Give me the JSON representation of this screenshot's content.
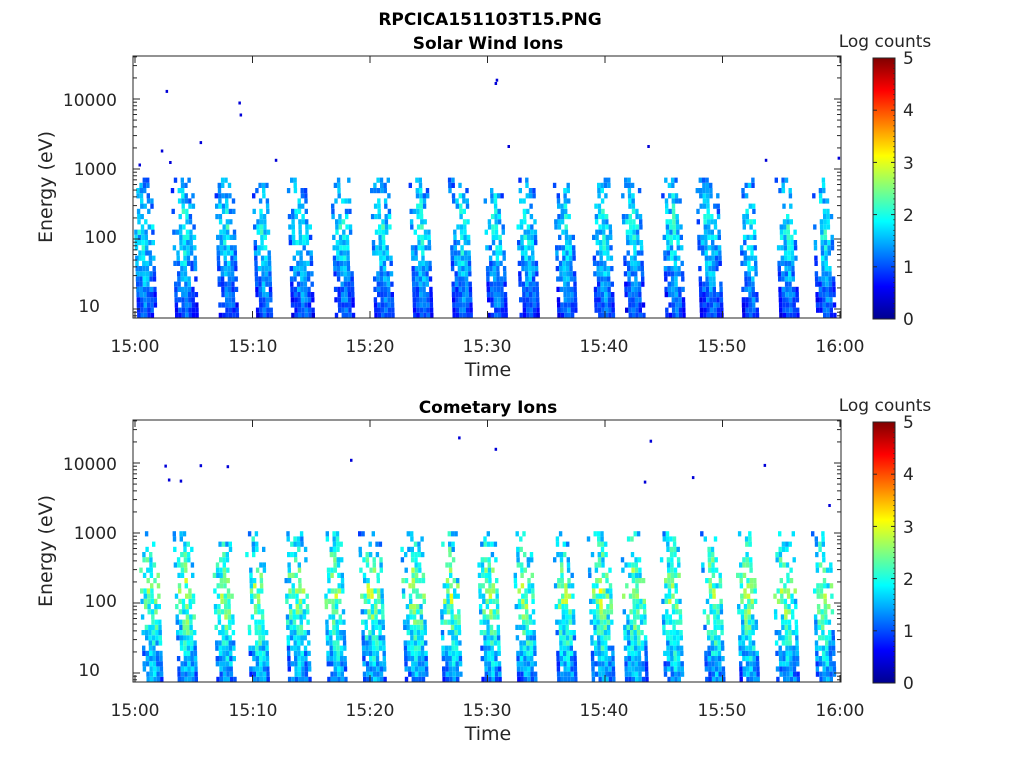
{
  "figure": {
    "title": "RPCICA151103T15.PNG"
  },
  "chart_data": [
    {
      "type": "heatmap",
      "title": "Solar Wind Ions",
      "xlabel": "Time",
      "ylabel": "Energy (eV)",
      "x_tick_labels": [
        "15:00",
        "15:10",
        "15:20",
        "15:30",
        "15:40",
        "15:50",
        "16:00"
      ],
      "y_tick_labels": [
        "10",
        "100",
        "1000",
        "10000"
      ],
      "y_scale": "log",
      "xlim_minutes": [
        0,
        60
      ],
      "ylim_eV": [
        6,
        40000
      ],
      "colorbar": {
        "label": "Log counts",
        "min": 0,
        "max": 5,
        "ticks": [
          "0",
          "1",
          "2",
          "3",
          "4",
          "5"
        ]
      },
      "pulses_minute": [
        0.8,
        4.3,
        7.9,
        11.0,
        14.2,
        17.8,
        21.2,
        24.5,
        27.9,
        30.8,
        33.5,
        36.8,
        40.0,
        42.5,
        46.0,
        49.0,
        52.4,
        55.6,
        58.8
      ],
      "peak_log_counts": 2.1,
      "isolated_points": [
        {
          "minute": 2.6,
          "eV": 13500
        },
        {
          "minute": 8.8,
          "eV": 9200
        },
        {
          "minute": 8.9,
          "eV": 6200
        },
        {
          "minute": 30.7,
          "eV": 19500
        },
        {
          "minute": 30.6,
          "eV": 17500
        },
        {
          "minute": 5.5,
          "eV": 2500
        },
        {
          "minute": 2.2,
          "eV": 1900
        },
        {
          "minute": 31.7,
          "eV": 2200
        },
        {
          "minute": 43.6,
          "eV": 2200
        },
        {
          "minute": 0.3,
          "eV": 1200
        },
        {
          "minute": 2.9,
          "eV": 1300
        },
        {
          "minute": 11.9,
          "eV": 1400
        },
        {
          "minute": 53.6,
          "eV": 1400
        },
        {
          "minute": 59.8,
          "eV": 1500
        }
      ]
    },
    {
      "type": "heatmap",
      "title": "Cometary Ions",
      "xlabel": "Time",
      "ylabel": "Energy (eV)",
      "x_tick_labels": [
        "15:00",
        "15:10",
        "15:20",
        "15:30",
        "15:40",
        "15:50",
        "16:00"
      ],
      "y_tick_labels": [
        "10",
        "100",
        "1000",
        "10000"
      ],
      "y_scale": "log",
      "xlim_minutes": [
        0,
        60
      ],
      "ylim_eV": [
        6,
        40000
      ],
      "colorbar": {
        "label": "Log counts",
        "min": 0,
        "max": 5,
        "ticks": [
          "0",
          "1",
          "2",
          "3",
          "4",
          "5"
        ]
      },
      "pulses_minute": [
        1.5,
        4.5,
        7.7,
        10.6,
        13.9,
        17.2,
        20.3,
        23.9,
        27.0,
        30.3,
        33.3,
        36.7,
        39.8,
        42.6,
        45.9,
        49.3,
        52.3,
        55.5,
        58.7
      ],
      "peak_log_counts": 2.9,
      "isolated_points": [
        {
          "minute": 27.5,
          "eV": 24000
        },
        {
          "minute": 30.6,
          "eV": 16500
        },
        {
          "minute": 43.8,
          "eV": 21500
        },
        {
          "minute": 2.5,
          "eV": 9500
        },
        {
          "minute": 5.5,
          "eV": 9600
        },
        {
          "minute": 7.8,
          "eV": 9300
        },
        {
          "minute": 18.3,
          "eV": 11500
        },
        {
          "minute": 53.5,
          "eV": 9700
        },
        {
          "minute": 47.4,
          "eV": 6500
        },
        {
          "minute": 2.8,
          "eV": 6000
        },
        {
          "minute": 3.8,
          "eV": 5800
        },
        {
          "minute": 43.3,
          "eV": 5600
        },
        {
          "minute": 59.0,
          "eV": 2600
        }
      ]
    }
  ]
}
